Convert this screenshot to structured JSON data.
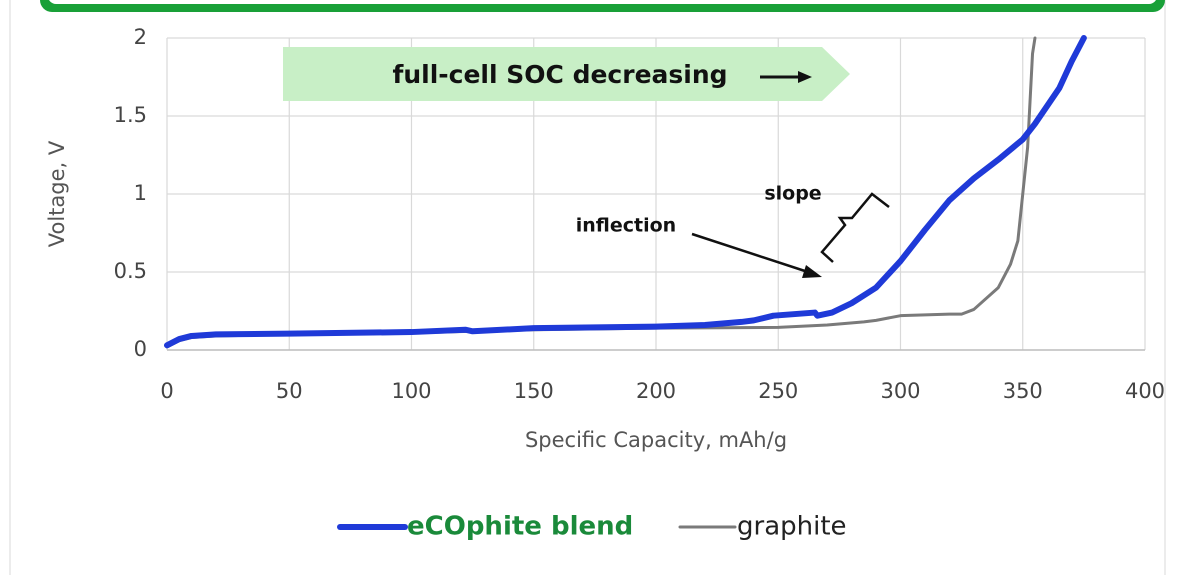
{
  "chart_data": {
    "type": "line",
    "annotations": [
      "full-cell SOC decreasing",
      "slope",
      "inflection"
    ],
    "x_label": "Specific Capacity, mAh/g",
    "y_label": "Voltage, V",
    "series": [
      {
        "name": "eCOphite blend",
        "color": "#1f3ad8",
        "x": [
          0,
          5,
          10,
          20,
          50,
          100,
          122,
          125,
          150,
          200,
          220,
          235,
          240,
          248,
          265,
          266,
          272,
          280,
          290,
          300,
          310,
          320,
          330,
          340,
          350,
          355,
          365,
          370,
          375
        ],
        "values": [
          0.03,
          0.07,
          0.09,
          0.1,
          0.105,
          0.115,
          0.13,
          0.12,
          0.14,
          0.15,
          0.16,
          0.18,
          0.19,
          0.22,
          0.24,
          0.22,
          0.24,
          0.3,
          0.4,
          0.57,
          0.77,
          0.96,
          1.1,
          1.22,
          1.35,
          1.45,
          1.68,
          1.85,
          2.0
        ]
      },
      {
        "name": "graphite",
        "color": "#7a7a7a",
        "x": [
          0,
          5,
          10,
          20,
          50,
          100,
          125,
          150,
          200,
          250,
          270,
          285,
          290,
          300,
          320,
          325,
          330,
          340,
          345,
          348,
          350,
          352,
          353,
          354,
          355
        ],
        "values": [
          0.02,
          0.06,
          0.08,
          0.09,
          0.1,
          0.11,
          0.12,
          0.13,
          0.14,
          0.145,
          0.16,
          0.18,
          0.19,
          0.22,
          0.23,
          0.23,
          0.26,
          0.4,
          0.55,
          0.7,
          1.0,
          1.3,
          1.6,
          1.9,
          2.0
        ]
      }
    ],
    "xlim": [
      0,
      400
    ],
    "xticks": [
      0,
      50,
      100,
      150,
      200,
      250,
      300,
      350,
      400
    ],
    "ylim": [
      0,
      2
    ],
    "yticks": [
      0,
      0.5,
      1,
      1.5,
      2
    ],
    "grid": true,
    "legend": "bottom"
  }
}
